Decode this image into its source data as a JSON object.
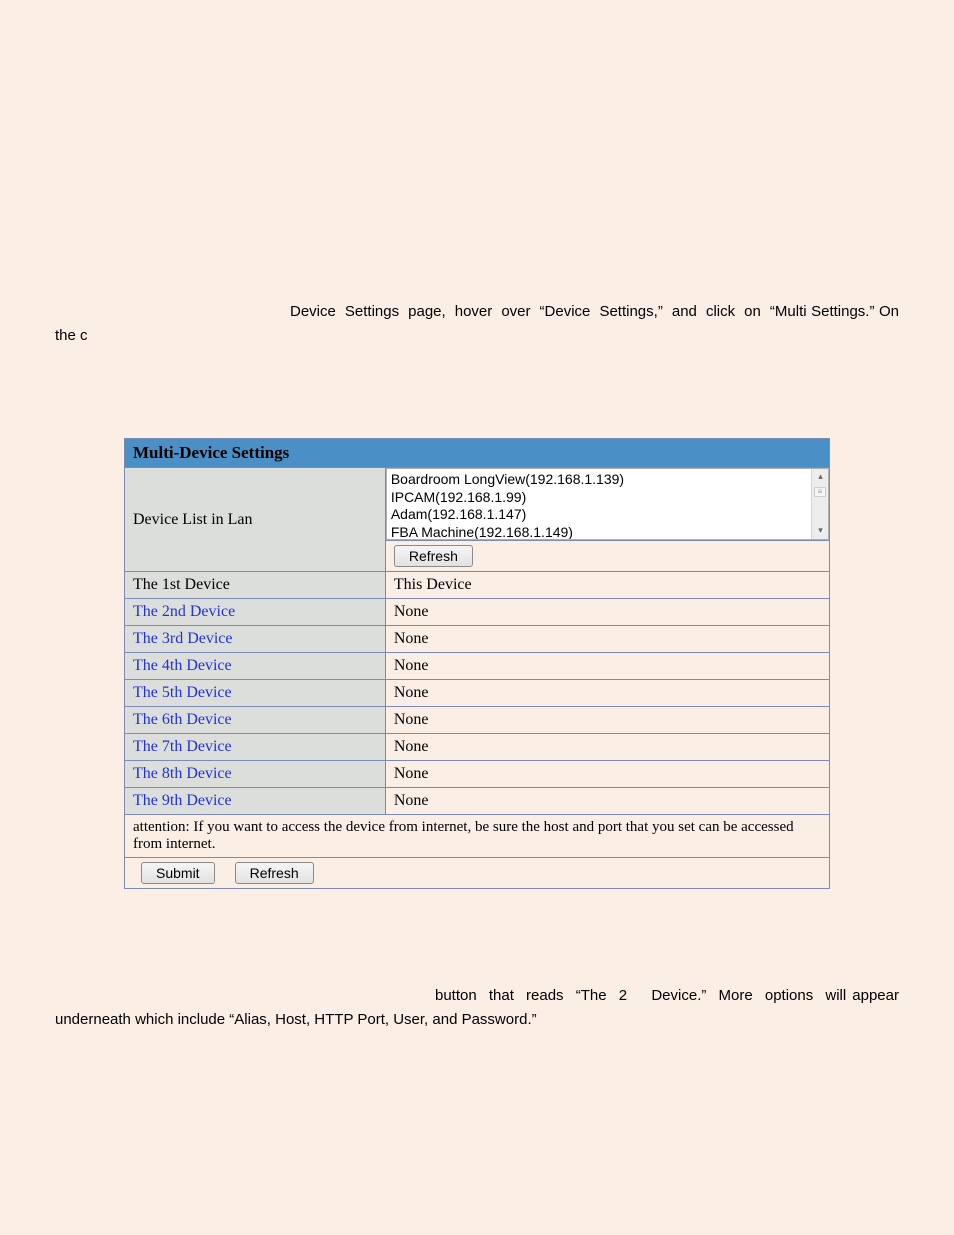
{
  "colors": {
    "page_bg": "#fbeee4",
    "header_bg": "#4a90c7",
    "left_col_bg": "#dcdedc",
    "right_col_bg": "#fbeee4",
    "border": "#7a8bb5",
    "link": "#2032d8"
  },
  "top_paragraph": "Device  Settings  page,  hover  over  “Device  Settings,”  and  click  on  “Multi Settings.” On the c",
  "table": {
    "title": "Multi-Device Settings",
    "device_list_label": "Device List in Lan",
    "device_list_items": [
      "Boardroom LongView(192.168.1.139)",
      "IPCAM(192.168.1.99)",
      "Adam(192.168.1.147)",
      "FBA Machine(192.168.1.149)"
    ],
    "refresh_label": "Refresh",
    "rows": [
      {
        "label": "The 1st Device",
        "value": "This Device",
        "link": false
      },
      {
        "label": "The 2nd Device",
        "value": "None",
        "link": true
      },
      {
        "label": "The 3rd Device",
        "value": "None",
        "link": true
      },
      {
        "label": "The 4th Device",
        "value": "None",
        "link": true
      },
      {
        "label": "The 5th Device",
        "value": "None",
        "link": true
      },
      {
        "label": "The 6th Device",
        "value": "None",
        "link": true
      },
      {
        "label": "The 7th Device",
        "value": "None",
        "link": true
      },
      {
        "label": "The 8th Device",
        "value": "None",
        "link": true
      },
      {
        "label": "The 9th Device",
        "value": "None",
        "link": true
      }
    ],
    "attention": "attention: If you want to access the device from internet, be sure the host and port that you set can be accessed from internet.",
    "submit_label": "Submit",
    "refresh2_label": "Refresh"
  },
  "bottom_paragraph": "button  that  reads  “The  2    Device.”  More  options  will appear underneath which include “Alias, Host, HTTP Port, User, and Password.”"
}
